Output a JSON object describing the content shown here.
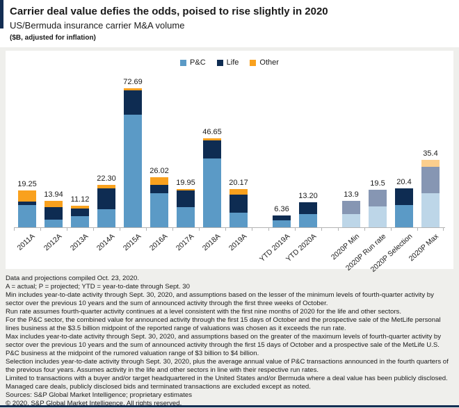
{
  "header": {
    "title": "Carrier deal value defies the odds, poised to rise slightly in 2020",
    "subtitle": "US/Bermuda insurance carrier M&A volume",
    "units_note": "($B, adjusted for inflation)"
  },
  "colors": {
    "pc": "#5b9ac6",
    "life": "#0e2c52",
    "other": "#f9a11e",
    "pc_muted": "#bdd6e8",
    "life_muted": "#8696b3",
    "other_muted": "#fbce8d",
    "accent": "#132e53",
    "bottom_rule": "#132e53",
    "page_bg": "#efefec",
    "panel_bg": "#ffffff",
    "axis": "#b3b3b3"
  },
  "legend": [
    {
      "label": "P&C",
      "color_key": "pc"
    },
    {
      "label": "Life",
      "color_key": "life"
    },
    {
      "label": "Other",
      "color_key": "other"
    }
  ],
  "chart_data": {
    "type": "bar",
    "stacked": true,
    "title": "US/Bermuda insurance carrier M&A volume",
    "ylabel": "$B, adjusted for inflation",
    "ylim": [
      0,
      76
    ],
    "grid": false,
    "legend_position": "top-center",
    "categories": [
      "2011A",
      "2012A",
      "2013A",
      "2014A",
      "2015A",
      "2016A",
      "2017A",
      "2018A",
      "2019A",
      "YTD 2019A",
      "YTD 2020A",
      "2020P Min",
      "2020P Run rate",
      "2020P Selection",
      "2020P Max"
    ],
    "series": [
      {
        "name": "P&C",
        "values": [
          11.5,
          4.1,
          6.0,
          9.3,
          58.7,
          17.7,
          10.5,
          35.8,
          7.5,
          3.7,
          6.9,
          7.0,
          11.0,
          11.8,
          17.8
        ]
      },
      {
        "name": "Life",
        "values": [
          1.9,
          6.5,
          3.9,
          11.2,
          13.0,
          4.3,
          8.85,
          9.55,
          9.7,
          2.66,
          6.3,
          6.9,
          8.5,
          8.6,
          14.0
        ]
      },
      {
        "name": "Other",
        "values": [
          5.85,
          3.34,
          1.22,
          1.8,
          0.99,
          4.02,
          0.6,
          1.3,
          2.97,
          0,
          0,
          0,
          0,
          0,
          3.6
        ]
      }
    ],
    "total_labels": [
      "19.25",
      "13.94",
      "11.12",
      "22.30",
      "72.69",
      "26.02",
      "19.95",
      "46.65",
      "20.17",
      "6.36",
      "13.20",
      "13.9",
      "19.5",
      "20.4",
      "35.4"
    ],
    "muted_bar_indexes": [
      11,
      12,
      14
    ],
    "gap_before_indexes": [
      9,
      11
    ]
  },
  "footnotes": [
    "Data and projections compiled Oct. 23, 2020.",
    "A = actual; P = projected; YTD = year-to-date through Sept. 30",
    "Min includes year-to-date activity through Sept. 30, 2020, and assumptions based on the lesser of the minimum levels of fourth-quarter activity by sector over the previous 10 years and the sum of announced activity through the first three weeks of October.",
    "Run rate assumes fourth-quarter activity continues at a level consistent with the first nine months of 2020 for the life and other sectors.",
    "For the P&C sector, the combined value for announced activity through the first 15 days of October and the prospective sale of the MetLife personal lines business at the $3.5 billion midpoint of the reported range of valuations was chosen as it exceeds the run rate.",
    "Max includes year-to-date activity through Sept. 30, 2020, and assumptions based on the greater of the maximum levels of fourth-quarter activity by sector over the previous 10 years and the sum of announced activity through the first 15 days of October and a prospective sale of the MetLife U.S. P&C business at the midpoint of the rumored valuation range of $3 billion to $4 billion.",
    "Selection includes year-to-date activity through Sept. 30, 2020, plus the average annual value of P&C transactions announced in the fourth quarters of the previous four years. Assumes activity in the life and other sectors in line with their respective run rates.",
    "Limited to transactions with a buyer and/or target headquartered in the United States and/or Bermuda where a deal value has been publicly disclosed. Managed care deals, publicly disclosed bids and terminated transactions are excluded except as noted.",
    "Sources: S&P Global Market Intelligence; proprietary estimates",
    "© 2020. S&P Global Market Intelligence. All rights reserved."
  ]
}
